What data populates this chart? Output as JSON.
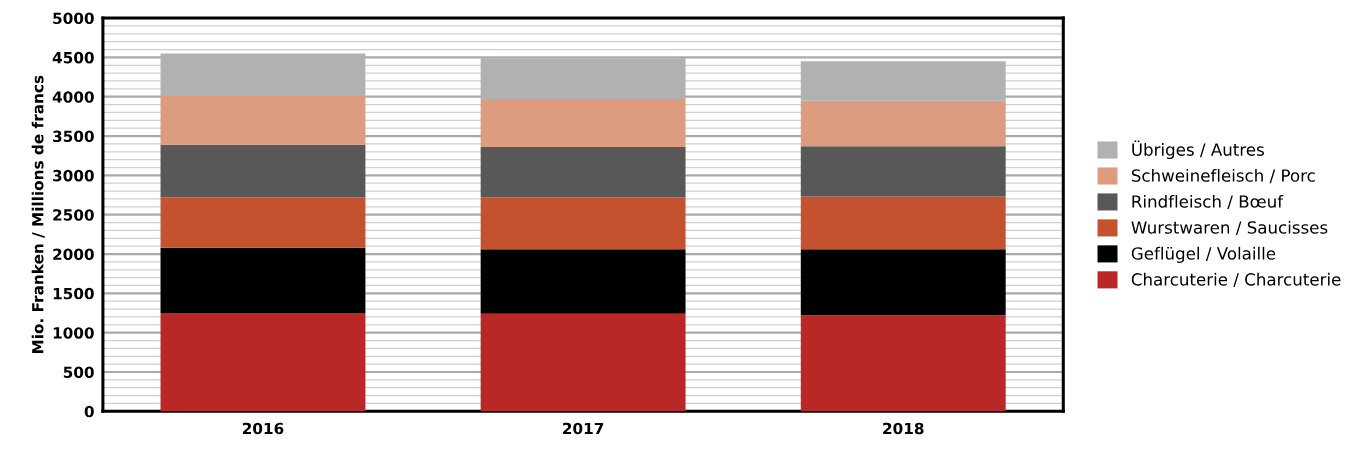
{
  "chart_data": {
    "type": "bar",
    "stacked": true,
    "ylabel": "Mio. Franken / Millions de francs",
    "categories": [
      "2016",
      "2017",
      "2018"
    ],
    "series": [
      {
        "name": "Charcuterie / Charcuterie",
        "color": "#b92827",
        "values": [
          1250,
          1240,
          1220
        ]
      },
      {
        "name": "Geflügel / Volaille",
        "color": "#000000",
        "values": [
          830,
          820,
          840
        ]
      },
      {
        "name": "Wurstwaren / Saucisses",
        "color": "#c4522f",
        "values": [
          640,
          660,
          670
        ]
      },
      {
        "name": "Rindfleisch / Bœuf",
        "color": "#575857",
        "values": [
          670,
          640,
          640
        ]
      },
      {
        "name": "Schweinefleisch / Porc",
        "color": "#dd9c7f",
        "values": [
          620,
          610,
          580
        ]
      },
      {
        "name": "Übriges / Autres",
        "color": "#b0b2b1",
        "values": [
          540,
          520,
          500
        ]
      }
    ],
    "ylim": [
      0,
      5000
    ],
    "yticks": [
      0,
      {
        "value": 100,
        "label": null
      },
      {
        "value": 200,
        "label": null
      },
      {
        "value": 300,
        "label": null
      },
      {
        "value": 400,
        "label": null
      },
      500,
      {
        "value": 600,
        "label": null
      },
      {
        "value": 700,
        "label": null
      },
      {
        "value": 800,
        "label": null
      },
      {
        "value": 900,
        "label": null
      },
      1000,
      {
        "value": 1100,
        "label": null
      },
      {
        "value": 1200,
        "label": null
      },
      {
        "value": 1300,
        "label": null
      },
      {
        "value": 1400,
        "label": null
      },
      1500,
      {
        "value": 1600,
        "label": null
      },
      {
        "value": 1700,
        "label": null
      },
      {
        "value": 1800,
        "label": null
      },
      {
        "value": 1900,
        "label": null
      },
      2000,
      {
        "value": 2100,
        "label": null
      },
      {
        "value": 2200,
        "label": null
      },
      {
        "value": 2300,
        "label": null
      },
      {
        "value": 2400,
        "label": null
      },
      2500,
      {
        "value": 2600,
        "label": null
      },
      {
        "value": 2700,
        "label": null
      },
      {
        "value": 2800,
        "label": null
      },
      {
        "value": 2900,
        "label": null
      },
      3000,
      {
        "value": 3100,
        "label": null
      },
      {
        "value": 3200,
        "label": null
      },
      {
        "value": 3300,
        "label": null
      },
      {
        "value": 3400,
        "label": null
      },
      3500,
      {
        "value": 3600,
        "label": null
      },
      {
        "value": 3700,
        "label": null
      },
      {
        "value": 3800,
        "label": null
      },
      {
        "value": 3900,
        "label": null
      },
      4000,
      {
        "value": 4100,
        "label": null
      },
      {
        "value": 4200,
        "label": null
      },
      {
        "value": 4300,
        "label": null
      },
      {
        "value": 4400,
        "label": null
      },
      4500,
      {
        "value": 4600,
        "label": null
      },
      {
        "value": 4700,
        "label": null
      },
      {
        "value": 4800,
        "label": null
      },
      {
        "value": 4900,
        "label": null
      },
      5000
    ],
    "grid": "y",
    "legend": "right"
  }
}
